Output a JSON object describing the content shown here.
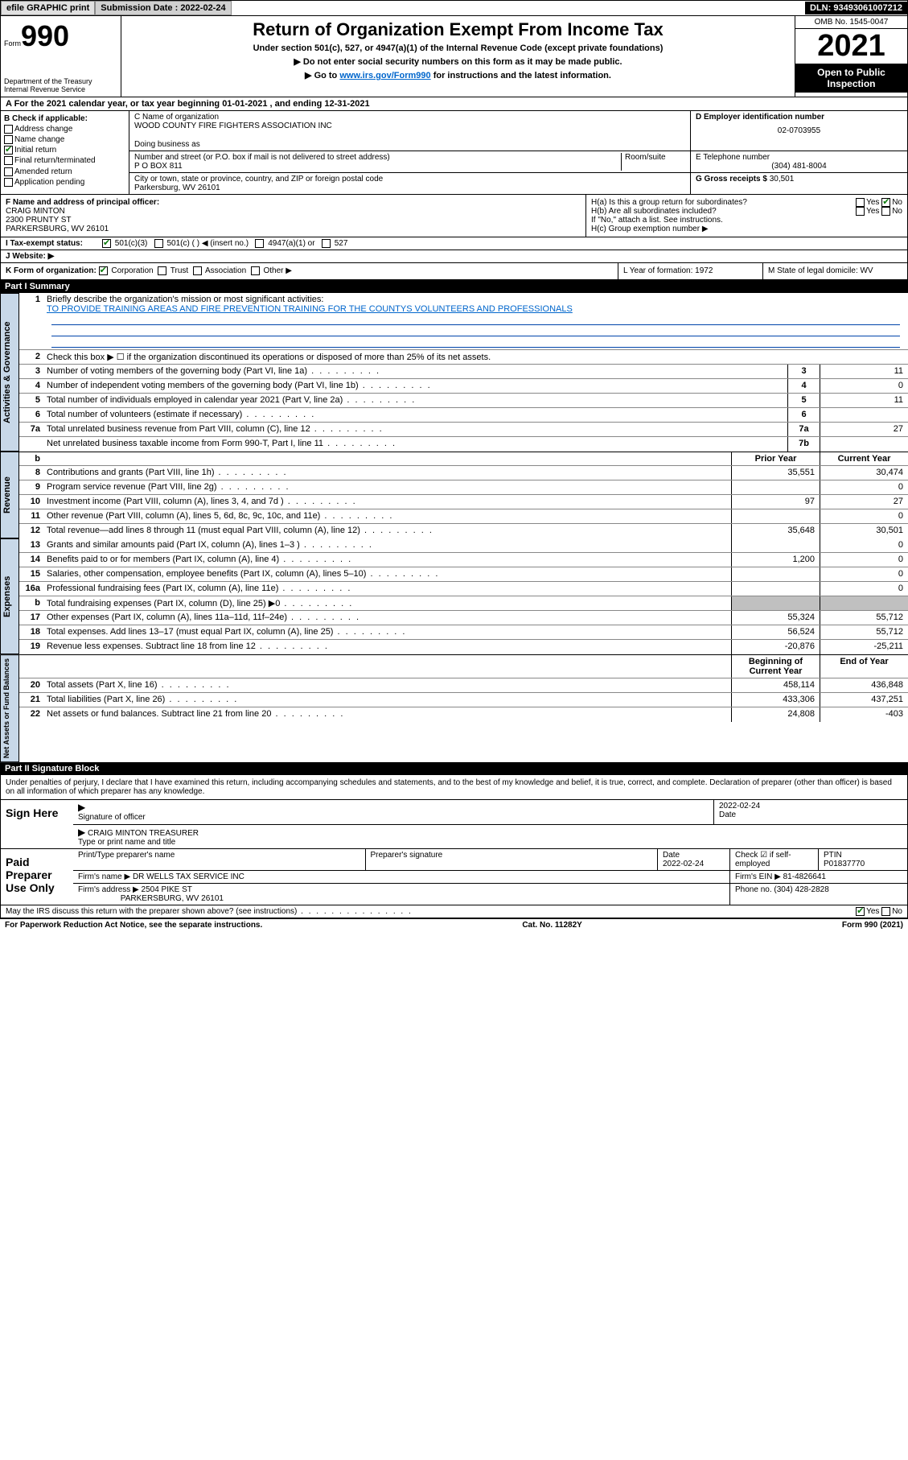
{
  "topbar": {
    "efile": "efile GRAPHIC print",
    "submission_label": "Submission Date : 2022-02-24",
    "dln": "DLN: 93493061007212"
  },
  "header": {
    "form_prefix": "Form",
    "form_number": "990",
    "dept": "Department of the Treasury",
    "irs": "Internal Revenue Service",
    "title": "Return of Organization Exempt From Income Tax",
    "sub1": "Under section 501(c), 527, or 4947(a)(1) of the Internal Revenue Code (except private foundations)",
    "sub2": "▶ Do not enter social security numbers on this form as it may be made public.",
    "sub3_pre": "▶ Go to ",
    "sub3_link": "www.irs.gov/Form990",
    "sub3_post": " for instructions and the latest information.",
    "omb": "OMB No. 1545-0047",
    "year": "2021",
    "inspection": "Open to Public Inspection"
  },
  "rowA": "A For the 2021 calendar year, or tax year beginning 01-01-2021   , and ending 12-31-2021",
  "colB": {
    "header": "B Check if applicable:",
    "items": [
      "Address change",
      "Name change",
      "Initial return",
      "Final return/terminated",
      "Amended return",
      "Application pending"
    ],
    "checked_index": 2
  },
  "colC": {
    "name_label": "C Name of organization",
    "name": "WOOD COUNTY FIRE FIGHTERS ASSOCIATION INC",
    "dba_label": "Doing business as",
    "street_label": "Number and street (or P.O. box if mail is not delivered to street address)",
    "room_label": "Room/suite",
    "street": "P O BOX 811",
    "city_label": "City or town, state or province, country, and ZIP or foreign postal code",
    "city": "Parkersburg, WV  26101"
  },
  "colD": {
    "ein_label": "D Employer identification number",
    "ein": "02-0703955",
    "phone_label": "E Telephone number",
    "phone": "(304) 481-8004",
    "gross_label": "G Gross receipts $",
    "gross": "30,501"
  },
  "colF": {
    "label": "F Name and address of principal officer:",
    "name": "CRAIG MINTON",
    "street": "2300 PRUNTY ST",
    "city": "PARKERSBURG, WV  26101"
  },
  "colH": {
    "ha": "H(a)  Is this a group return for subordinates?",
    "hb": "H(b)  Are all subordinates included?",
    "hb_note": "If \"No,\" attach a list. See instructions.",
    "hc": "H(c)  Group exemption number ▶",
    "yes": "Yes",
    "no": "No"
  },
  "rowI": {
    "label": "I   Tax-exempt status:",
    "opts": [
      "501(c)(3)",
      "501(c) (  ) ◀ (insert no.)",
      "4947(a)(1) or",
      "527"
    ]
  },
  "rowJ": {
    "label": "J   Website: ▶"
  },
  "rowK": {
    "label": "K Form of organization:",
    "opts": [
      "Corporation",
      "Trust",
      "Association",
      "Other ▶"
    ]
  },
  "rowL": {
    "label": "L Year of formation: 1972"
  },
  "rowM": {
    "label": "M State of legal domicile: WV"
  },
  "part1_header": "Part I     Summary",
  "summary": {
    "q1_label": "Briefly describe the organization's mission or most significant activities:",
    "q1_text": "TO PROVIDE TRAINING AREAS AND FIRE PREVENTION TRAINING FOR THE COUNTYS VOLUNTEERS AND PROFESSIONALS",
    "q2": "Check this box ▶ ☐  if the organization discontinued its operations or disposed of more than 25% of its net assets.",
    "rows_gov": [
      {
        "n": "3",
        "t": "Number of voting members of the governing body (Part VI, line 1a)",
        "c": "3",
        "v": "11"
      },
      {
        "n": "4",
        "t": "Number of independent voting members of the governing body (Part VI, line 1b)",
        "c": "4",
        "v": "0"
      },
      {
        "n": "5",
        "t": "Total number of individuals employed in calendar year 2021 (Part V, line 2a)",
        "c": "5",
        "v": "11"
      },
      {
        "n": "6",
        "t": "Total number of volunteers (estimate if necessary)",
        "c": "6",
        "v": ""
      },
      {
        "n": "7a",
        "t": "Total unrelated business revenue from Part VIII, column (C), line 12",
        "c": "7a",
        "v": "27"
      },
      {
        "n": "",
        "t": "Net unrelated business taxable income from Form 990-T, Part I, line 11",
        "c": "7b",
        "v": ""
      }
    ],
    "col_headers": {
      "prior": "Prior Year",
      "current": "Current Year"
    },
    "rows_rev": [
      {
        "n": "8",
        "t": "Contributions and grants (Part VIII, line 1h)",
        "p": "35,551",
        "c": "30,474"
      },
      {
        "n": "9",
        "t": "Program service revenue (Part VIII, line 2g)",
        "p": "",
        "c": "0"
      },
      {
        "n": "10",
        "t": "Investment income (Part VIII, column (A), lines 3, 4, and 7d )",
        "p": "97",
        "c": "27"
      },
      {
        "n": "11",
        "t": "Other revenue (Part VIII, column (A), lines 5, 6d, 8c, 9c, 10c, and 11e)",
        "p": "",
        "c": "0"
      },
      {
        "n": "12",
        "t": "Total revenue—add lines 8 through 11 (must equal Part VIII, column (A), line 12)",
        "p": "35,648",
        "c": "30,501"
      }
    ],
    "rows_exp": [
      {
        "n": "13",
        "t": "Grants and similar amounts paid (Part IX, column (A), lines 1–3 )",
        "p": "",
        "c": "0"
      },
      {
        "n": "14",
        "t": "Benefits paid to or for members (Part IX, column (A), line 4)",
        "p": "1,200",
        "c": "0"
      },
      {
        "n": "15",
        "t": "Salaries, other compensation, employee benefits (Part IX, column (A), lines 5–10)",
        "p": "",
        "c": "0"
      },
      {
        "n": "16a",
        "t": "Professional fundraising fees (Part IX, column (A), line 11e)",
        "p": "",
        "c": "0"
      },
      {
        "n": "b",
        "t": "Total fundraising expenses (Part IX, column (D), line 25) ▶0",
        "p": "shade",
        "c": "shade"
      },
      {
        "n": "17",
        "t": "Other expenses (Part IX, column (A), lines 11a–11d, 11f–24e)",
        "p": "55,324",
        "c": "55,712"
      },
      {
        "n": "18",
        "t": "Total expenses. Add lines 13–17 (must equal Part IX, column (A), line 25)",
        "p": "56,524",
        "c": "55,712"
      },
      {
        "n": "19",
        "t": "Revenue less expenses. Subtract line 18 from line 12",
        "p": "-20,876",
        "c": "-25,211"
      }
    ],
    "na_headers": {
      "begin": "Beginning of Current Year",
      "end": "End of Year"
    },
    "rows_na": [
      {
        "n": "20",
        "t": "Total assets (Part X, line 16)",
        "p": "458,114",
        "c": "436,848"
      },
      {
        "n": "21",
        "t": "Total liabilities (Part X, line 26)",
        "p": "433,306",
        "c": "437,251"
      },
      {
        "n": "22",
        "t": "Net assets or fund balances. Subtract line 21 from line 20",
        "p": "24,808",
        "c": "-403"
      }
    ],
    "vert_labels": {
      "gov": "Activities & Governance",
      "rev": "Revenue",
      "exp": "Expenses",
      "na": "Net Assets or Fund Balances"
    }
  },
  "part2_header": "Part II     Signature Block",
  "sig_declaration": "Under penalties of perjury, I declare that I have examined this return, including accompanying schedules and statements, and to the best of my knowledge and belief, it is true, correct, and complete. Declaration of preparer (other than officer) is based on all information of which preparer has any knowledge.",
  "sign_here": {
    "label": "Sign Here",
    "sig_of_officer": "Signature of officer",
    "date": "2022-02-24",
    "date_label": "Date",
    "name": "CRAIG MINTON TREASURER",
    "name_label": "Type or print name and title"
  },
  "paid_prep": {
    "label": "Paid Preparer Use Only",
    "col1": "Print/Type preparer's name",
    "col2": "Preparer's signature",
    "col3": "Date",
    "col3v": "2022-02-24",
    "col4": "Check ☑ if self-employed",
    "col5": "PTIN",
    "col5v": "P01837770",
    "firm_name_label": "Firm's name   ▶",
    "firm_name": "DR WELLS TAX SERVICE INC",
    "firm_ein_label": "Firm's EIN ▶",
    "firm_ein": "81-4826641",
    "firm_addr_label": "Firm's address ▶",
    "firm_addr1": "2504 PIKE ST",
    "firm_addr2": "PARKERSBURG, WV  26101",
    "phone_label": "Phone no.",
    "phone": "(304) 428-2828"
  },
  "may_irs": "May the IRS discuss this return with the preparer shown above? (see instructions)",
  "footer": {
    "left": "For Paperwork Reduction Act Notice, see the separate instructions.",
    "mid": "Cat. No. 11282Y",
    "right": "Form 990 (2021)"
  }
}
